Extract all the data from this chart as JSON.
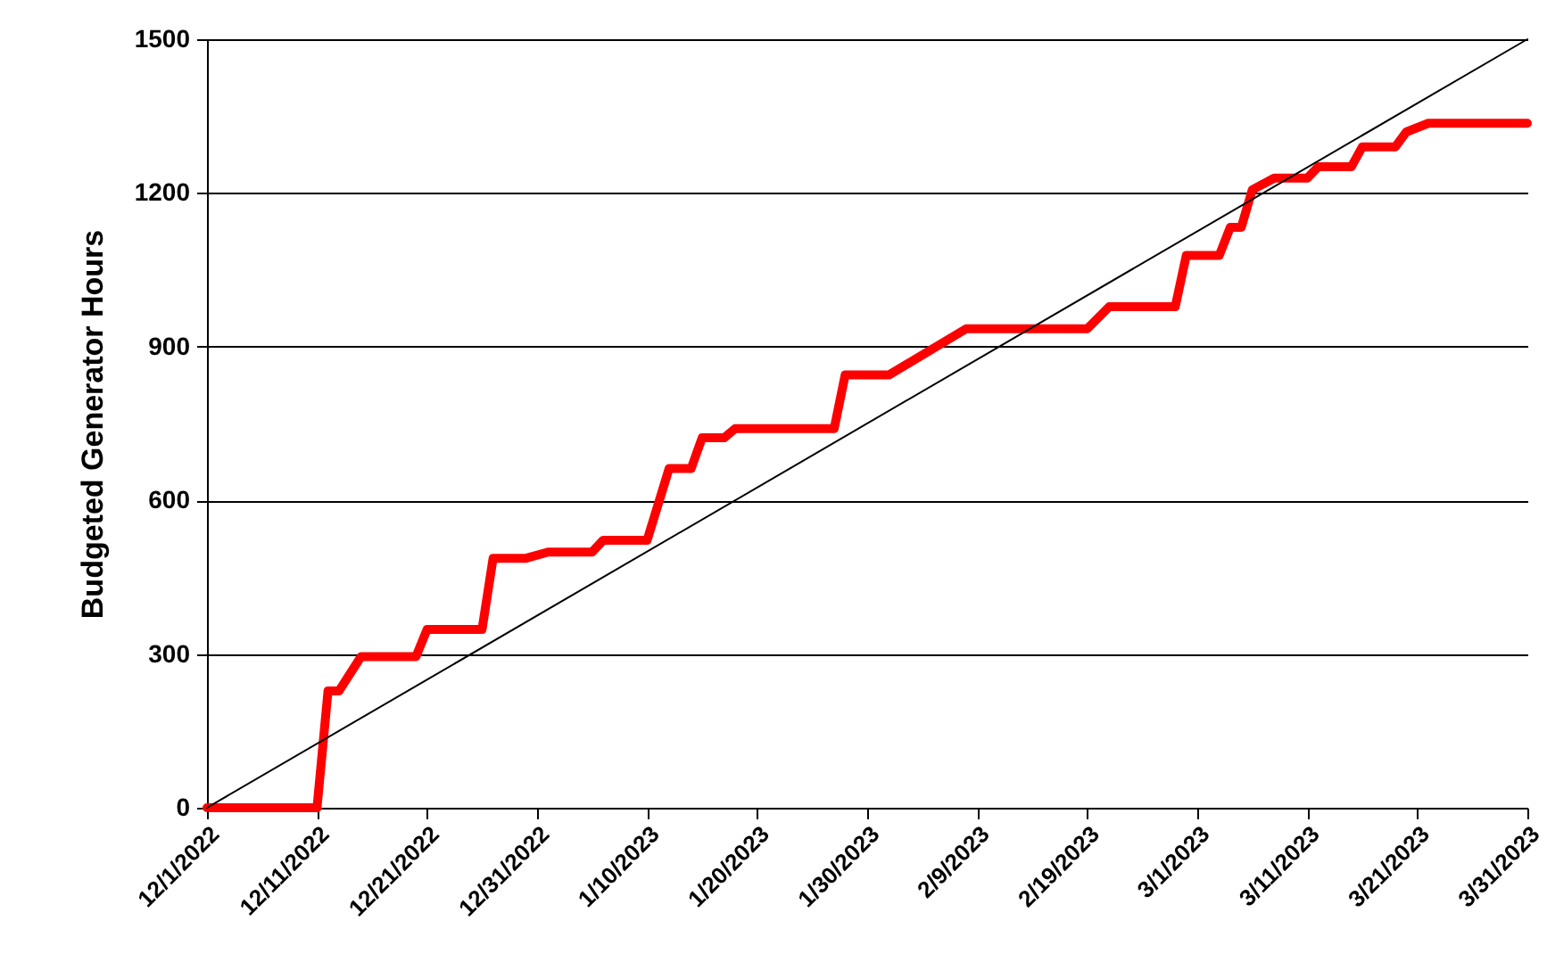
{
  "chart_data": {
    "type": "line",
    "ylabel": "Budgeted Generator Hours",
    "grid": "y",
    "xlim": [
      "2022-12-01",
      "2023-03-31"
    ],
    "xticks": [
      {
        "value": "2022-12-01",
        "label": "12/1/2022"
      },
      {
        "value": "2022-12-11",
        "label": "12/11/2022"
      },
      {
        "value": "2022-12-21",
        "label": "12/21/2022"
      },
      {
        "value": "2022-12-31",
        "label": "12/31/2022"
      },
      {
        "value": "2023-01-10",
        "label": "1/10/2023"
      },
      {
        "value": "2023-01-20",
        "label": "1/20/2023"
      },
      {
        "value": "2023-01-30",
        "label": "1/30/2023"
      },
      {
        "value": "2023-02-09",
        "label": "2/9/2023"
      },
      {
        "value": "2023-02-19",
        "label": "2/19/2023"
      },
      {
        "value": "2023-03-01",
        "label": "3/1/2023"
      },
      {
        "value": "2023-03-11",
        "label": "3/11/2023"
      },
      {
        "value": "2023-03-21",
        "label": "3/21/2023"
      },
      {
        "value": "2023-03-31",
        "label": "3/31/2023"
      }
    ],
    "ylim": [
      0,
      1500
    ],
    "yticks": [
      0,
      300,
      600,
      900,
      1200,
      1500
    ],
    "series": [
      {
        "color": "#ff0000",
        "x": [
          "2022-12-01",
          "2022-12-11",
          "2022-12-12",
          "2022-12-13",
          "2022-12-15",
          "2022-12-20",
          "2022-12-21",
          "2022-12-26",
          "2022-12-27",
          "2022-12-30",
          "2023-01-01",
          "2023-01-05",
          "2023-01-06",
          "2023-01-10",
          "2023-01-12",
          "2023-01-14",
          "2023-01-15",
          "2023-01-17",
          "2023-01-18",
          "2023-01-27",
          "2023-01-28",
          "2023-02-01",
          "2023-02-08",
          "2023-02-19",
          "2023-02-21",
          "2023-02-27",
          "2023-02-28",
          "2023-03-03",
          "2023-03-04",
          "2023-03-05",
          "2023-03-06",
          "2023-03-08",
          "2023-03-11",
          "2023-03-12",
          "2023-03-15",
          "2023-03-16",
          "2023-03-19",
          "2023-03-20",
          "2023-03-22",
          "2023-03-31"
        ],
        "values": [
          0,
          0,
          228,
          228,
          295,
          295,
          348,
          348,
          487,
          487,
          499,
          499,
          522,
          522,
          662,
          662,
          722,
          722,
          740,
          740,
          845,
          845,
          935,
          935,
          978,
          978,
          1078,
          1078,
          1133,
          1133,
          1206,
          1229,
          1229,
          1251,
          1251,
          1290,
          1290,
          1319,
          1336,
          1336
        ]
      },
      {
        "color": "#000000",
        "x": [
          "2022-12-01",
          "2023-03-31"
        ],
        "values": [
          0,
          1500
        ]
      }
    ]
  }
}
